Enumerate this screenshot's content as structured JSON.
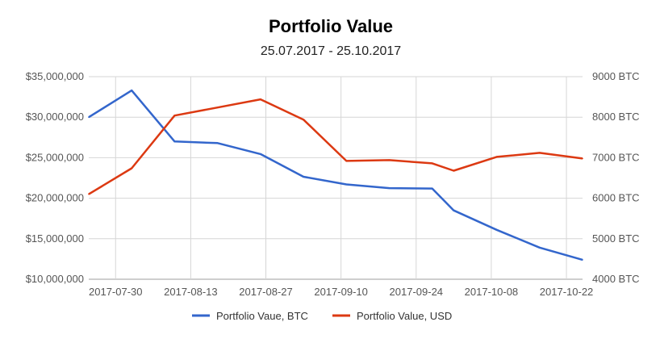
{
  "chart_data": {
    "type": "line",
    "title": "Portfolio Value",
    "subtitle": "25.07.2017 - 25.10.2017",
    "x": [
      "2017-07-25",
      "2017-08-02",
      "2017-08-10",
      "2017-08-18",
      "2017-08-26",
      "2017-09-03",
      "2017-09-11",
      "2017-09-19",
      "2017-09-27",
      "2017-10-01",
      "2017-10-09",
      "2017-10-17",
      "2017-10-25"
    ],
    "x_ticks": [
      "2017-07-30",
      "2017-08-13",
      "2017-08-27",
      "2017-09-10",
      "2017-09-24",
      "2017-10-08",
      "2017-10-22"
    ],
    "y_left": {
      "min": 10000000,
      "max": 35000000,
      "ticks": [
        "$10,000,000",
        "$15,000,000",
        "$20,000,000",
        "$25,000,000",
        "$30,000,000",
        "$35,000,000"
      ]
    },
    "y_right": {
      "min": 4000,
      "max": 9000,
      "ticks": [
        "4000 BTC",
        "5000 BTC",
        "6000 BTC",
        "7000 BTC",
        "8000 BTC",
        "9000 BTC"
      ]
    },
    "series": [
      {
        "name": "Portfolio Vaue, BTC",
        "axis": "right",
        "color": "#3366cc",
        "values": [
          8000,
          8660,
          7400,
          7360,
          7090,
          6530,
          6340,
          6250,
          6240,
          5700,
          5220,
          4780,
          4480
        ]
      },
      {
        "name": "Portfolio Value, USD",
        "axis": "left",
        "color": "#dc3912",
        "values": [
          20500000,
          23700000,
          30200000,
          31200000,
          32200000,
          29700000,
          24600000,
          24700000,
          24300000,
          23400000,
          25100000,
          25600000,
          24900000
        ]
      }
    ],
    "grid": true,
    "legend_position": "bottom"
  }
}
